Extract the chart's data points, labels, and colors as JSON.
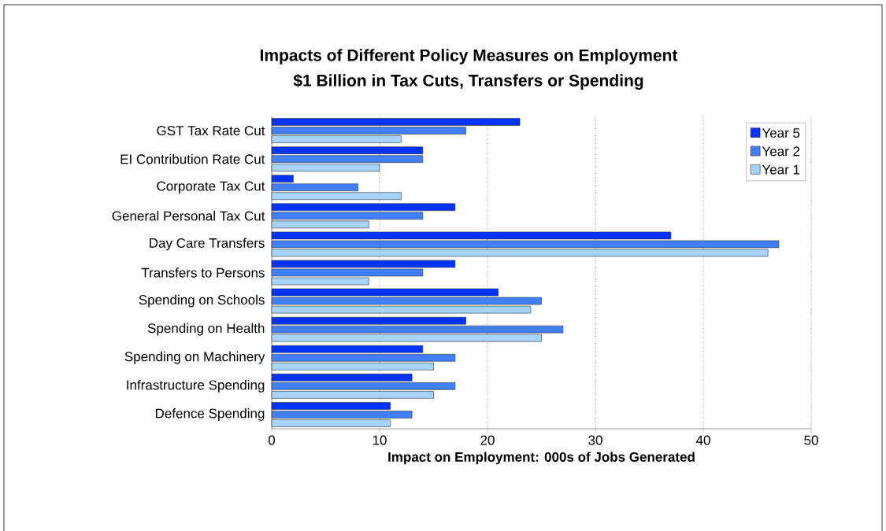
{
  "chart_data": {
    "type": "bar",
    "orientation": "horizontal",
    "title": "Impacts of Different Policy Measures on Employment",
    "subtitle": "$1 Billion in  Tax Cuts, Transfers or Spending",
    "xlabel": "Impact on Employment: 000s of Jobs Generated",
    "categories": [
      "GST Tax Rate Cut",
      "EI Contribution Rate Cut",
      "Corporate Tax Cut",
      "General Personal Tax Cut",
      "Day Care Transfers",
      "Transfers to Persons",
      "Spending on Schools",
      "Spending on Health",
      "Spending on Machinery",
      "Infrastructure Spending",
      "Defence Spending"
    ],
    "series": [
      {
        "name": "Year 5",
        "color": "#0033ff",
        "values": [
          23,
          14,
          2,
          17,
          37,
          17,
          21,
          18,
          14,
          13,
          11
        ]
      },
      {
        "name": "Year 2",
        "color": "#4080ff",
        "values": [
          18,
          14,
          8,
          14,
          47,
          14,
          25,
          27,
          17,
          17,
          13
        ]
      },
      {
        "name": "Year 1",
        "color": "#a6d4ff",
        "values": [
          12,
          10,
          12,
          9,
          46,
          9,
          24,
          25,
          15,
          15,
          11
        ]
      }
    ],
    "xlim": [
      0,
      50
    ],
    "xticks": [
      0,
      10,
      20,
      30,
      40,
      50
    ],
    "grid": "x",
    "legend": "top right"
  }
}
